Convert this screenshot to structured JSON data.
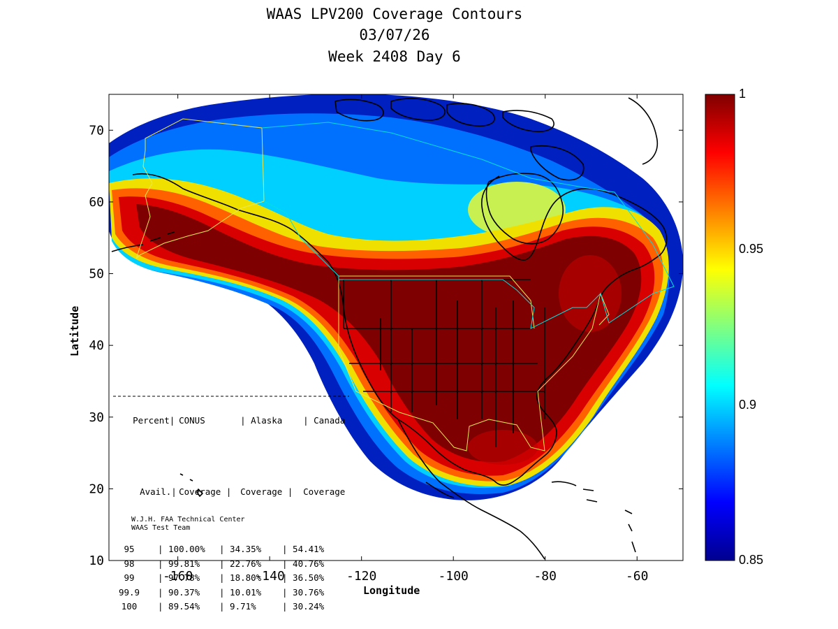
{
  "title": [
    "WAAS LPV200 Coverage Contours",
    "03/07/26",
    "Week 2408 Day 6"
  ],
  "axes": {
    "xlabel": "Longitude",
    "ylabel": "Latitude",
    "x_ticks": [
      "-160",
      "-140",
      "-120",
      "-100",
      "-80",
      "-60"
    ],
    "y_ticks": [
      "10",
      "20",
      "30",
      "40",
      "50",
      "60",
      "70"
    ],
    "xlim": [
      -175,
      -50
    ],
    "ylim": [
      10,
      75
    ]
  },
  "colorbar": {
    "ticks": [
      "1",
      "0.95",
      "0.9",
      "0.85"
    ],
    "range": [
      0.85,
      1
    ],
    "colormap": "jet"
  },
  "coverage_table": {
    "header1": [
      "Percent|",
      "CONUS",
      "| Alaska",
      "| Canada"
    ],
    "header2": [
      "Avail.|",
      "Coverage |",
      "Coverage |",
      "Coverage"
    ],
    "rows": [
      [
        "95",
        "| 100.00%",
        "| 34.35%",
        "| 54.41%"
      ],
      [
        "98",
        "| 99.81%",
        "| 22.76%",
        "| 40.76%"
      ],
      [
        "99",
        "| 97.78%",
        "| 18.80%",
        "| 36.50%"
      ],
      [
        "99.9",
        "| 90.37%",
        "| 10.01%",
        "| 30.76%"
      ],
      [
        "100",
        "| 89.54%",
        "| 9.71%",
        "| 30.24%"
      ]
    ]
  },
  "credit": [
    "W.J.H. FAA Technical Center",
    "WAAS Test Team"
  ],
  "colors": {
    "deep_red": "#7f0000",
    "red": "#cc0000",
    "orange": "#ff6a00",
    "yellow": "#f5f000",
    "cyan": "#00d8ff",
    "blue": "#0040ff",
    "navy": "#00008f",
    "alaska_border": "#e8e850",
    "canada_border": "#00e0e0"
  }
}
